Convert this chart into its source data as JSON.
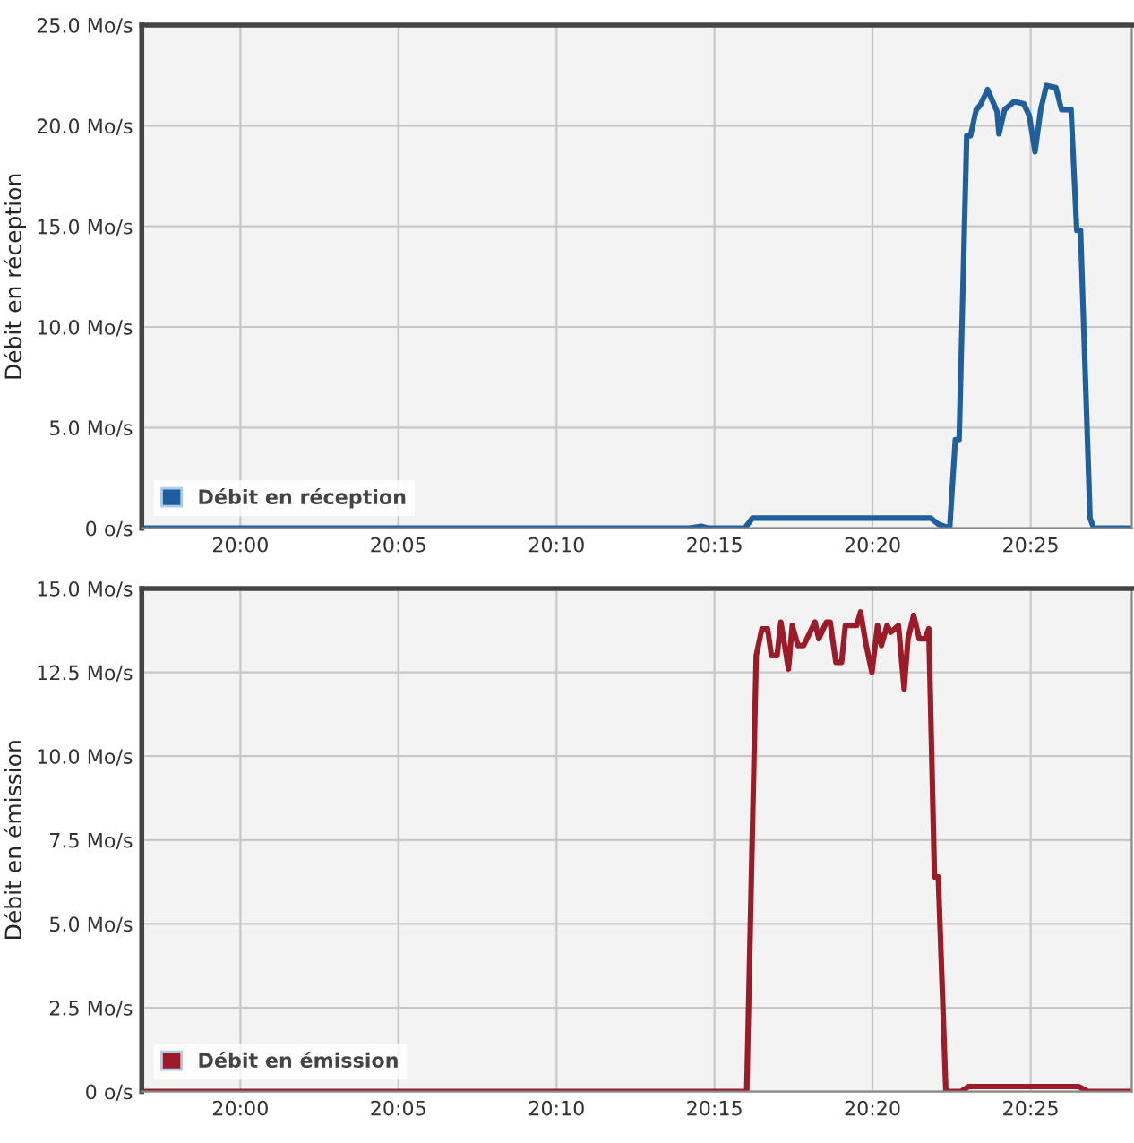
{
  "chart_data": [
    {
      "type": "line",
      "ylabel": "Débit en réception",
      "legend": "bottom left",
      "grid": true,
      "marker": "none",
      "line_style": "solid",
      "xlim": [
        19.948,
        20.47
      ],
      "ylim": [
        0,
        25
      ],
      "xticks": [
        {
          "value": 20.0,
          "label": "20:00"
        },
        {
          "value": 20.0833,
          "label": "20:05"
        },
        {
          "value": 20.1667,
          "label": "20:10"
        },
        {
          "value": 20.25,
          "label": "20:15"
        },
        {
          "value": 20.3333,
          "label": "20:20"
        },
        {
          "value": 20.4167,
          "label": "20:25"
        }
      ],
      "yticks": [
        {
          "value": 0,
          "label": "0 o/s"
        },
        {
          "value": 5,
          "label": "5.0 Mo/s"
        },
        {
          "value": 10,
          "label": "10.0 Mo/s"
        },
        {
          "value": 15,
          "label": "15.0 Mo/s"
        },
        {
          "value": 20,
          "label": "20.0 Mo/s"
        },
        {
          "value": 25,
          "label": "25.0 Mo/s"
        }
      ],
      "series": [
        {
          "name": "Débit en réception",
          "color": "#1f5f9c",
          "x": [
            19.948,
            20.237,
            20.243,
            20.247,
            20.266,
            20.27,
            20.345,
            20.364,
            20.368,
            20.374,
            20.377,
            20.379,
            20.383,
            20.385,
            20.388,
            20.39,
            20.394,
            20.399,
            20.4,
            20.403,
            20.408,
            20.413,
            20.416,
            20.419,
            20.422,
            20.425,
            20.43,
            20.433,
            20.438,
            20.441,
            20.443,
            20.448,
            20.45,
            20.47
          ],
          "values": [
            0,
            0,
            0.1,
            0,
            0,
            0.5,
            0.5,
            0.5,
            0.2,
            0,
            4.4,
            4.4,
            19.5,
            19.5,
            20.8,
            21.0,
            21.8,
            20.7,
            19.6,
            20.8,
            21.2,
            21.1,
            20.5,
            18.7,
            20.8,
            22.0,
            21.9,
            20.8,
            20.8,
            14.8,
            14.8,
            0.5,
            0,
            0
          ]
        }
      ]
    },
    {
      "type": "line",
      "ylabel": "Débit en émission",
      "legend": "bottom left",
      "grid": true,
      "marker": "none",
      "line_style": "solid",
      "xlim": [
        19.948,
        20.47
      ],
      "ylim": [
        0,
        15
      ],
      "xticks": [
        {
          "value": 20.0,
          "label": "20:00"
        },
        {
          "value": 20.0833,
          "label": "20:05"
        },
        {
          "value": 20.1667,
          "label": "20:10"
        },
        {
          "value": 20.25,
          "label": "20:15"
        },
        {
          "value": 20.3333,
          "label": "20:20"
        },
        {
          "value": 20.4167,
          "label": "20:25"
        }
      ],
      "yticks": [
        {
          "value": 0,
          "label": "0 o/s"
        },
        {
          "value": 2.5,
          "label": "2.5 Mo/s"
        },
        {
          "value": 5,
          "label": "5.0 Mo/s"
        },
        {
          "value": 7.5,
          "label": "7.5 Mo/s"
        },
        {
          "value": 10,
          "label": "10.0 Mo/s"
        },
        {
          "value": 12.5,
          "label": "12.5 Mo/s"
        },
        {
          "value": 15,
          "label": "15.0 Mo/s"
        }
      ],
      "series": [
        {
          "name": "Débit en émission",
          "color": "#9b1c28",
          "x": [
            19.948,
            20.267,
            20.272,
            20.275,
            20.278,
            20.28,
            20.283,
            20.285,
            20.289,
            20.291,
            20.294,
            20.297,
            20.303,
            20.305,
            20.309,
            20.311,
            20.314,
            20.317,
            20.319,
            20.325,
            20.327,
            20.33,
            20.333,
            20.336,
            20.338,
            20.341,
            20.343,
            20.347,
            20.35,
            20.352,
            20.355,
            20.358,
            20.361,
            20.363,
            20.366,
            20.368,
            20.372,
            20.38,
            20.384,
            20.442,
            20.447,
            20.47
          ],
          "values": [
            0,
            0,
            13.0,
            13.8,
            13.8,
            13.0,
            13.0,
            14.0,
            12.6,
            13.9,
            13.3,
            13.3,
            14.0,
            13.5,
            14.0,
            14.0,
            12.8,
            12.8,
            13.9,
            13.9,
            14.3,
            13.3,
            12.5,
            13.9,
            13.3,
            13.9,
            13.7,
            13.9,
            12.0,
            13.5,
            14.2,
            13.5,
            13.5,
            13.8,
            6.4,
            6.4,
            0,
            0,
            0.15,
            0.15,
            0,
            0
          ]
        }
      ]
    }
  ]
}
